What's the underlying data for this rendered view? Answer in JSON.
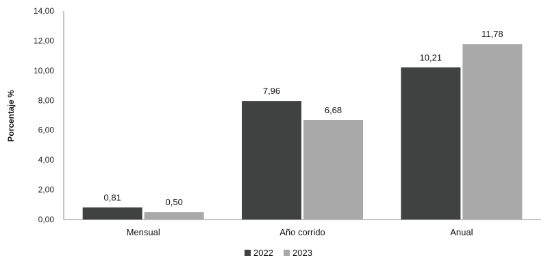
{
  "chart_data": {
    "type": "bar",
    "title": "",
    "xlabel": "",
    "ylabel": "Porcentaje %",
    "ylim": [
      0,
      14
    ],
    "y_ticks": [
      "0,00",
      "2,00",
      "4,00",
      "6,00",
      "8,00",
      "10,00",
      "12,00",
      "14,00"
    ],
    "grid": false,
    "legend_position": "bottom",
    "categories": [
      "Mensual",
      "Año corrido",
      "Anual"
    ],
    "series": [
      {
        "name": "2022",
        "color": "#3f4240",
        "values": [
          0.81,
          7.96,
          10.21
        ],
        "labels": [
          "0,81",
          "7,96",
          "10,21"
        ]
      },
      {
        "name": "2023",
        "color": "#a9a9a9",
        "values": [
          0.5,
          6.68,
          11.78
        ],
        "labels": [
          "0,50",
          "6,68",
          "11,78"
        ]
      }
    ]
  }
}
